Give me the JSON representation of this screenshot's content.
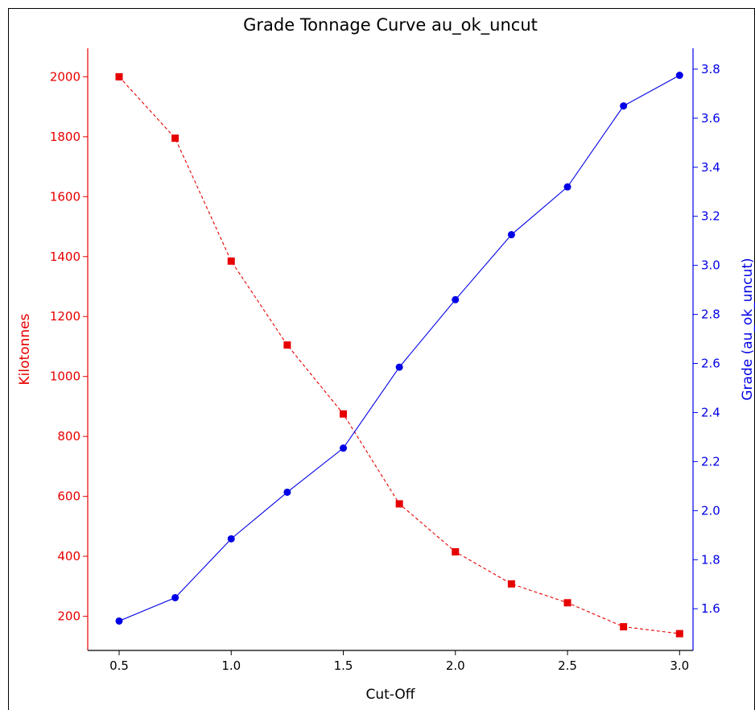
{
  "chart_data": {
    "type": "line",
    "title": "Grade Tonnage Curve au_ok_uncut",
    "xlabel": "Cut-Off",
    "ylabel_left": "Kilotonnes",
    "ylabel_right": "Grade (au_ok_uncut)",
    "x": [
      0.5,
      0.75,
      1.0,
      1.25,
      1.5,
      1.75,
      2.0,
      2.25,
      2.5,
      2.75,
      3.0
    ],
    "x_ticks": [
      "0.5",
      "1.0",
      "1.5",
      "2.0",
      "2.5",
      "3.0"
    ],
    "y_left_ticks": [
      "200",
      "400",
      "600",
      "800",
      "1000",
      "1200",
      "1400",
      "1600",
      "1800",
      "2000"
    ],
    "y_right_ticks": [
      "1.6",
      "1.8",
      "2.0",
      "2.2",
      "2.4",
      "2.6",
      "2.8",
      "3.0",
      "3.2",
      "3.4",
      "3.6",
      "3.8"
    ],
    "xlim": [
      0.36,
      3.06
    ],
    "ylim_left": [
      86,
      2095
    ],
    "ylim_right": [
      1.43,
      3.885
    ],
    "series": [
      {
        "axis": "left",
        "color": "#e60000",
        "marker": "square",
        "line_style": "dashed",
        "values": [
          2000,
          1795,
          1385,
          1105,
          875,
          575,
          415,
          308,
          245,
          165,
          142
        ]
      },
      {
        "axis": "right",
        "color": "#0000e6",
        "marker": "circle",
        "line_style": "solid",
        "values": [
          1.55,
          1.645,
          1.885,
          2.075,
          2.255,
          2.585,
          2.86,
          3.125,
          3.32,
          3.65,
          3.775
        ]
      }
    ]
  }
}
